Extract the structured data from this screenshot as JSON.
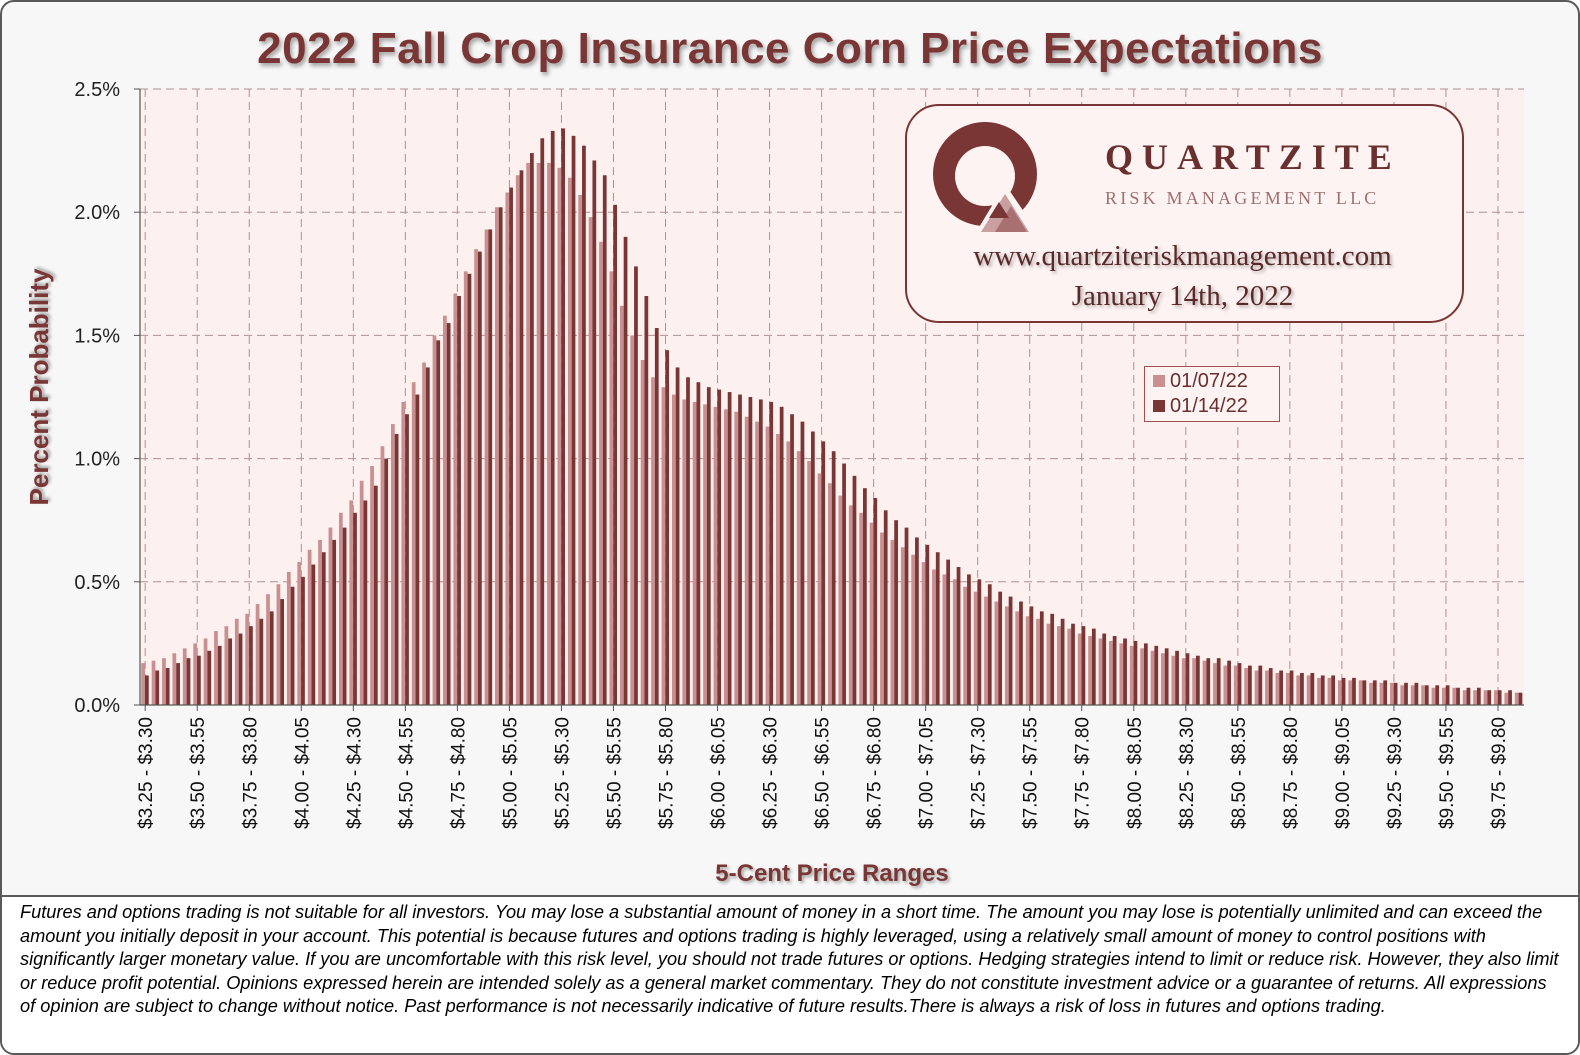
{
  "chart_data": {
    "type": "bar",
    "title": "2022 Fall Crop Insurance Corn Price Expectations",
    "xlabel": "5-Cent Price Ranges",
    "ylabel": "Percent  Probability",
    "ylim": [
      0,
      2.5
    ],
    "yticks": [
      "0.0%",
      "0.5%",
      "1.0%",
      "1.5%",
      "2.0%",
      "2.5%"
    ],
    "grid": true,
    "legend_position": "right",
    "category_start": 3.25,
    "category_step": 0.05,
    "tick_labels": [
      "$3.25 - $3.30",
      "$3.50 - $3.55",
      "$3.75 - $3.80",
      "$4.00 - $4.05",
      "$4.25 - $4.30",
      "$4.50 - $4.55",
      "$4.75 - $4.80",
      "$5.00 - $5.05",
      "$5.25 - $5.30",
      "$5.50 - $5.55",
      "$5.75 - $5.80",
      "$6.00 - $6.05",
      "$6.25 - $6.30",
      "$6.50 - $6.55",
      "$6.75 - $6.80",
      "$7.00 - $7.05",
      "$7.25 - $7.30",
      "$7.50 - $7.55",
      "$7.75 - $7.80",
      "$8.00 - $8.05",
      "$8.25 - $8.30",
      "$8.50 - $8.55",
      "$8.75 - $8.80",
      "$9.00 - $9.05",
      "$9.25 - $9.30",
      "$9.50 - $9.55",
      "$9.75 - $9.80"
    ],
    "series": [
      {
        "name": "01/07/22",
        "color": "#c89090",
        "values": [
          0.17,
          0.18,
          0.19,
          0.21,
          0.23,
          0.25,
          0.27,
          0.3,
          0.32,
          0.35,
          0.37,
          0.41,
          0.45,
          0.49,
          0.54,
          0.58,
          0.63,
          0.67,
          0.72,
          0.78,
          0.83,
          0.91,
          0.97,
          1.05,
          1.14,
          1.23,
          1.31,
          1.39,
          1.5,
          1.58,
          1.67,
          1.76,
          1.85,
          1.93,
          2.02,
          2.08,
          2.15,
          2.2,
          2.2,
          2.2,
          2.18,
          2.14,
          2.07,
          1.98,
          1.88,
          1.76,
          1.62,
          1.5,
          1.4,
          1.33,
          1.29,
          1.26,
          1.24,
          1.23,
          1.22,
          1.21,
          1.2,
          1.19,
          1.17,
          1.15,
          1.13,
          1.1,
          1.07,
          1.03,
          0.99,
          0.94,
          0.9,
          0.85,
          0.81,
          0.78,
          0.74,
          0.7,
          0.67,
          0.64,
          0.61,
          0.58,
          0.55,
          0.53,
          0.51,
          0.48,
          0.46,
          0.44,
          0.42,
          0.4,
          0.38,
          0.36,
          0.35,
          0.33,
          0.32,
          0.31,
          0.29,
          0.28,
          0.27,
          0.26,
          0.25,
          0.24,
          0.23,
          0.22,
          0.21,
          0.2,
          0.19,
          0.19,
          0.18,
          0.17,
          0.16,
          0.16,
          0.15,
          0.14,
          0.14,
          0.13,
          0.13,
          0.12,
          0.12,
          0.11,
          0.11,
          0.1,
          0.1,
          0.1,
          0.09,
          0.09,
          0.09,
          0.08,
          0.08,
          0.08,
          0.07,
          0.07,
          0.07,
          0.06,
          0.06,
          0.06,
          0.06,
          0.05,
          0.05
        ]
      },
      {
        "name": "01/14/22",
        "color": "#7a3535",
        "values": [
          0.12,
          0.14,
          0.15,
          0.17,
          0.19,
          0.2,
          0.22,
          0.24,
          0.27,
          0.29,
          0.32,
          0.35,
          0.38,
          0.43,
          0.48,
          0.52,
          0.57,
          0.62,
          0.67,
          0.72,
          0.78,
          0.83,
          0.89,
          1.0,
          1.1,
          1.18,
          1.26,
          1.37,
          1.48,
          1.55,
          1.66,
          1.75,
          1.84,
          1.93,
          2.02,
          2.1,
          2.17,
          2.24,
          2.3,
          2.33,
          2.34,
          2.31,
          2.27,
          2.21,
          2.15,
          2.03,
          1.9,
          1.78,
          1.66,
          1.53,
          1.44,
          1.37,
          1.33,
          1.31,
          1.29,
          1.28,
          1.27,
          1.26,
          1.25,
          1.24,
          1.23,
          1.21,
          1.18,
          1.15,
          1.11,
          1.07,
          1.03,
          0.98,
          0.93,
          0.88,
          0.84,
          0.79,
          0.75,
          0.72,
          0.68,
          0.65,
          0.62,
          0.59,
          0.56,
          0.53,
          0.51,
          0.49,
          0.46,
          0.44,
          0.42,
          0.4,
          0.38,
          0.37,
          0.35,
          0.33,
          0.32,
          0.31,
          0.29,
          0.28,
          0.27,
          0.26,
          0.25,
          0.24,
          0.23,
          0.22,
          0.21,
          0.2,
          0.19,
          0.19,
          0.18,
          0.17,
          0.16,
          0.16,
          0.15,
          0.14,
          0.14,
          0.13,
          0.13,
          0.12,
          0.12,
          0.11,
          0.11,
          0.1,
          0.1,
          0.1,
          0.09,
          0.09,
          0.09,
          0.08,
          0.08,
          0.08,
          0.07,
          0.07,
          0.07,
          0.06,
          0.06,
          0.06,
          0.05
        ]
      }
    ]
  },
  "logo": {
    "brand": "QUARTZITE",
    "subtitle": "RISK MANAGEMENT LLC",
    "url": "www.quartziteriskmanagement.com",
    "date": "January 14th, 2022"
  },
  "colors": {
    "accent": "#7a3535",
    "plot_background": "#fdf1f0",
    "light_series": "#c89090",
    "dark_series": "#7a3535"
  },
  "disclaimer": "Futures and options trading is not suitable for all investors. You may lose a substantial amount of money in a short time. The amount you may lose is potentially unlimited and can exceed the amount you initially deposit in your account. This potential is because futures and options trading is highly leveraged, using a relatively small amount of money to control positions with significantly larger monetary value. If you are uncomfortable with this risk level, you should not trade futures or options. Hedging strategies intend to limit or reduce risk. However, they also limit or reduce profit potential. Opinions expressed herein are intended solely as a general market commentary. They do not constitute investment advice or a guarantee of returns. All expressions of opinion are subject to change without notice. Past performance is not necessarily indicative of future results.There is always a risk of loss in futures and options trading."
}
